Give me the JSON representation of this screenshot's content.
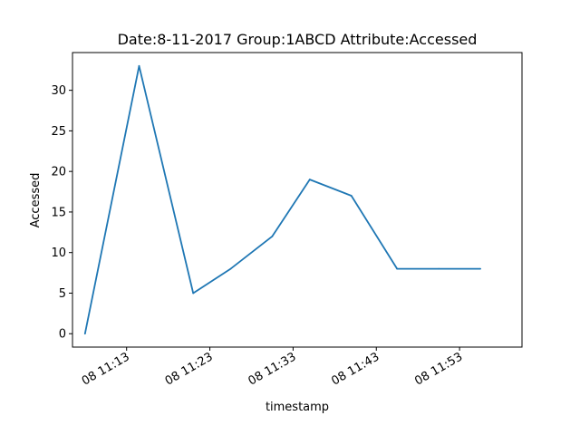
{
  "chart_data": {
    "type": "line",
    "title": "Date:8-11-2017  Group:1ABCD Attribute:Accessed",
    "xlabel": "timestamp",
    "ylabel": "Accessed",
    "x_ticks": [
      "08 11:13",
      "08 11:23",
      "08 11:33",
      "08 11:43",
      "08 11:53"
    ],
    "x_tick_minutes": [
      13,
      23,
      33,
      43,
      53
    ],
    "y_ticks": [
      0,
      5,
      10,
      15,
      20,
      25,
      30
    ],
    "xlim": [
      6.5,
      60.5
    ],
    "ylim": [
      -1.65,
      34.65
    ],
    "grid": false,
    "series": [
      {
        "color": "#1f77b4",
        "x": [
          8,
          14.5,
          21,
          25.5,
          30.5,
          35,
          40,
          45.5,
          50.5,
          55.5
        ],
        "y": [
          0,
          33,
          5,
          8,
          12,
          19,
          17,
          8,
          8,
          8
        ]
      }
    ]
  }
}
